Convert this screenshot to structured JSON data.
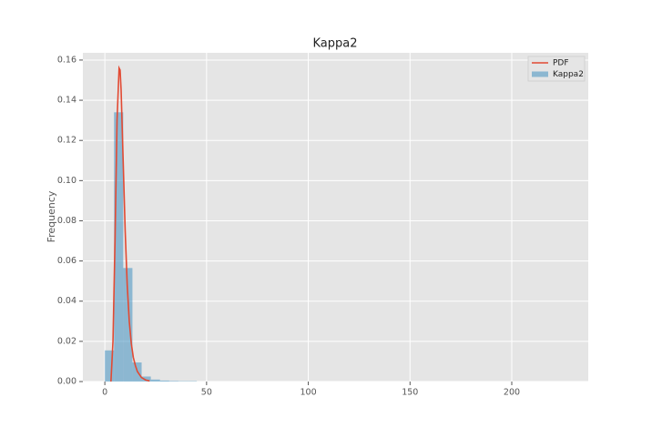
{
  "chart_data": {
    "type": "histogram",
    "title": "Kappa2",
    "ylabel": "Frequency",
    "xlim": [
      -10.8,
      237.6
    ],
    "ylim": [
      0,
      0.1636
    ],
    "xticks": [
      0,
      50,
      100,
      150,
      200
    ],
    "yticks": [
      {
        "value": 0,
        "label": "0.00"
      },
      {
        "value": 0.02,
        "label": "0.02"
      },
      {
        "value": 0.04,
        "label": "0.04"
      },
      {
        "value": 0.06,
        "label": "0.06"
      },
      {
        "value": 0.08,
        "label": "0.08"
      },
      {
        "value": 0.1,
        "label": "0.10"
      },
      {
        "value": 0.12,
        "label": "0.12"
      },
      {
        "value": 0.14,
        "label": "0.14"
      },
      {
        "value": 0.16,
        "label": "0.16"
      }
    ],
    "grid": true,
    "legend": "upper right",
    "series": [
      {
        "name": "PDF",
        "type": "line",
        "color": "#e24a33",
        "x": [
          3,
          4,
          5,
          6,
          7,
          7.5,
          8,
          9,
          10,
          11,
          12,
          13,
          14,
          15,
          16,
          18,
          20,
          22
        ],
        "values": [
          0.0,
          0.02,
          0.07,
          0.13,
          0.156,
          0.155,
          0.145,
          0.11,
          0.075,
          0.048,
          0.03,
          0.019,
          0.012,
          0.008,
          0.005,
          0.002,
          0.0008,
          0.0003
        ]
      },
      {
        "name": "Kappa2",
        "type": "histogram",
        "color": "#348abd",
        "bins": [
          0,
          4.52,
          9.04,
          13.56,
          18.08,
          22.6,
          27.12,
          31.64,
          36.16,
          40.68,
          45.2,
          49.72,
          54.24,
          58.76,
          63.28,
          67.8,
          72.32,
          76.84,
          81.36,
          85.88,
          90.4,
          94.92,
          99.44,
          103.96,
          108.48,
          113,
          117.52,
          122.04,
          126.56,
          131.08,
          135.6,
          140.12,
          144.64,
          149.16,
          153.68,
          158.2,
          162.72,
          167.24,
          171.76,
          176.28,
          180.8,
          185.32,
          189.84,
          194.36,
          198.88,
          203.4,
          207.92,
          212.44,
          216.96,
          221.48,
          226
        ],
        "values": [
          0.0155,
          0.134,
          0.0565,
          0.0095,
          0.0025,
          0.001,
          0.0005,
          0.0003,
          0.0002,
          0.0002,
          0,
          0,
          0,
          0,
          0,
          0,
          0,
          0,
          0,
          0,
          0,
          0,
          0,
          0,
          0,
          0,
          0,
          0,
          0,
          0,
          0,
          0,
          0,
          0,
          0,
          0,
          0,
          0,
          0,
          0,
          0,
          0,
          0,
          0,
          0,
          0,
          0,
          0,
          0,
          0
        ]
      }
    ]
  }
}
